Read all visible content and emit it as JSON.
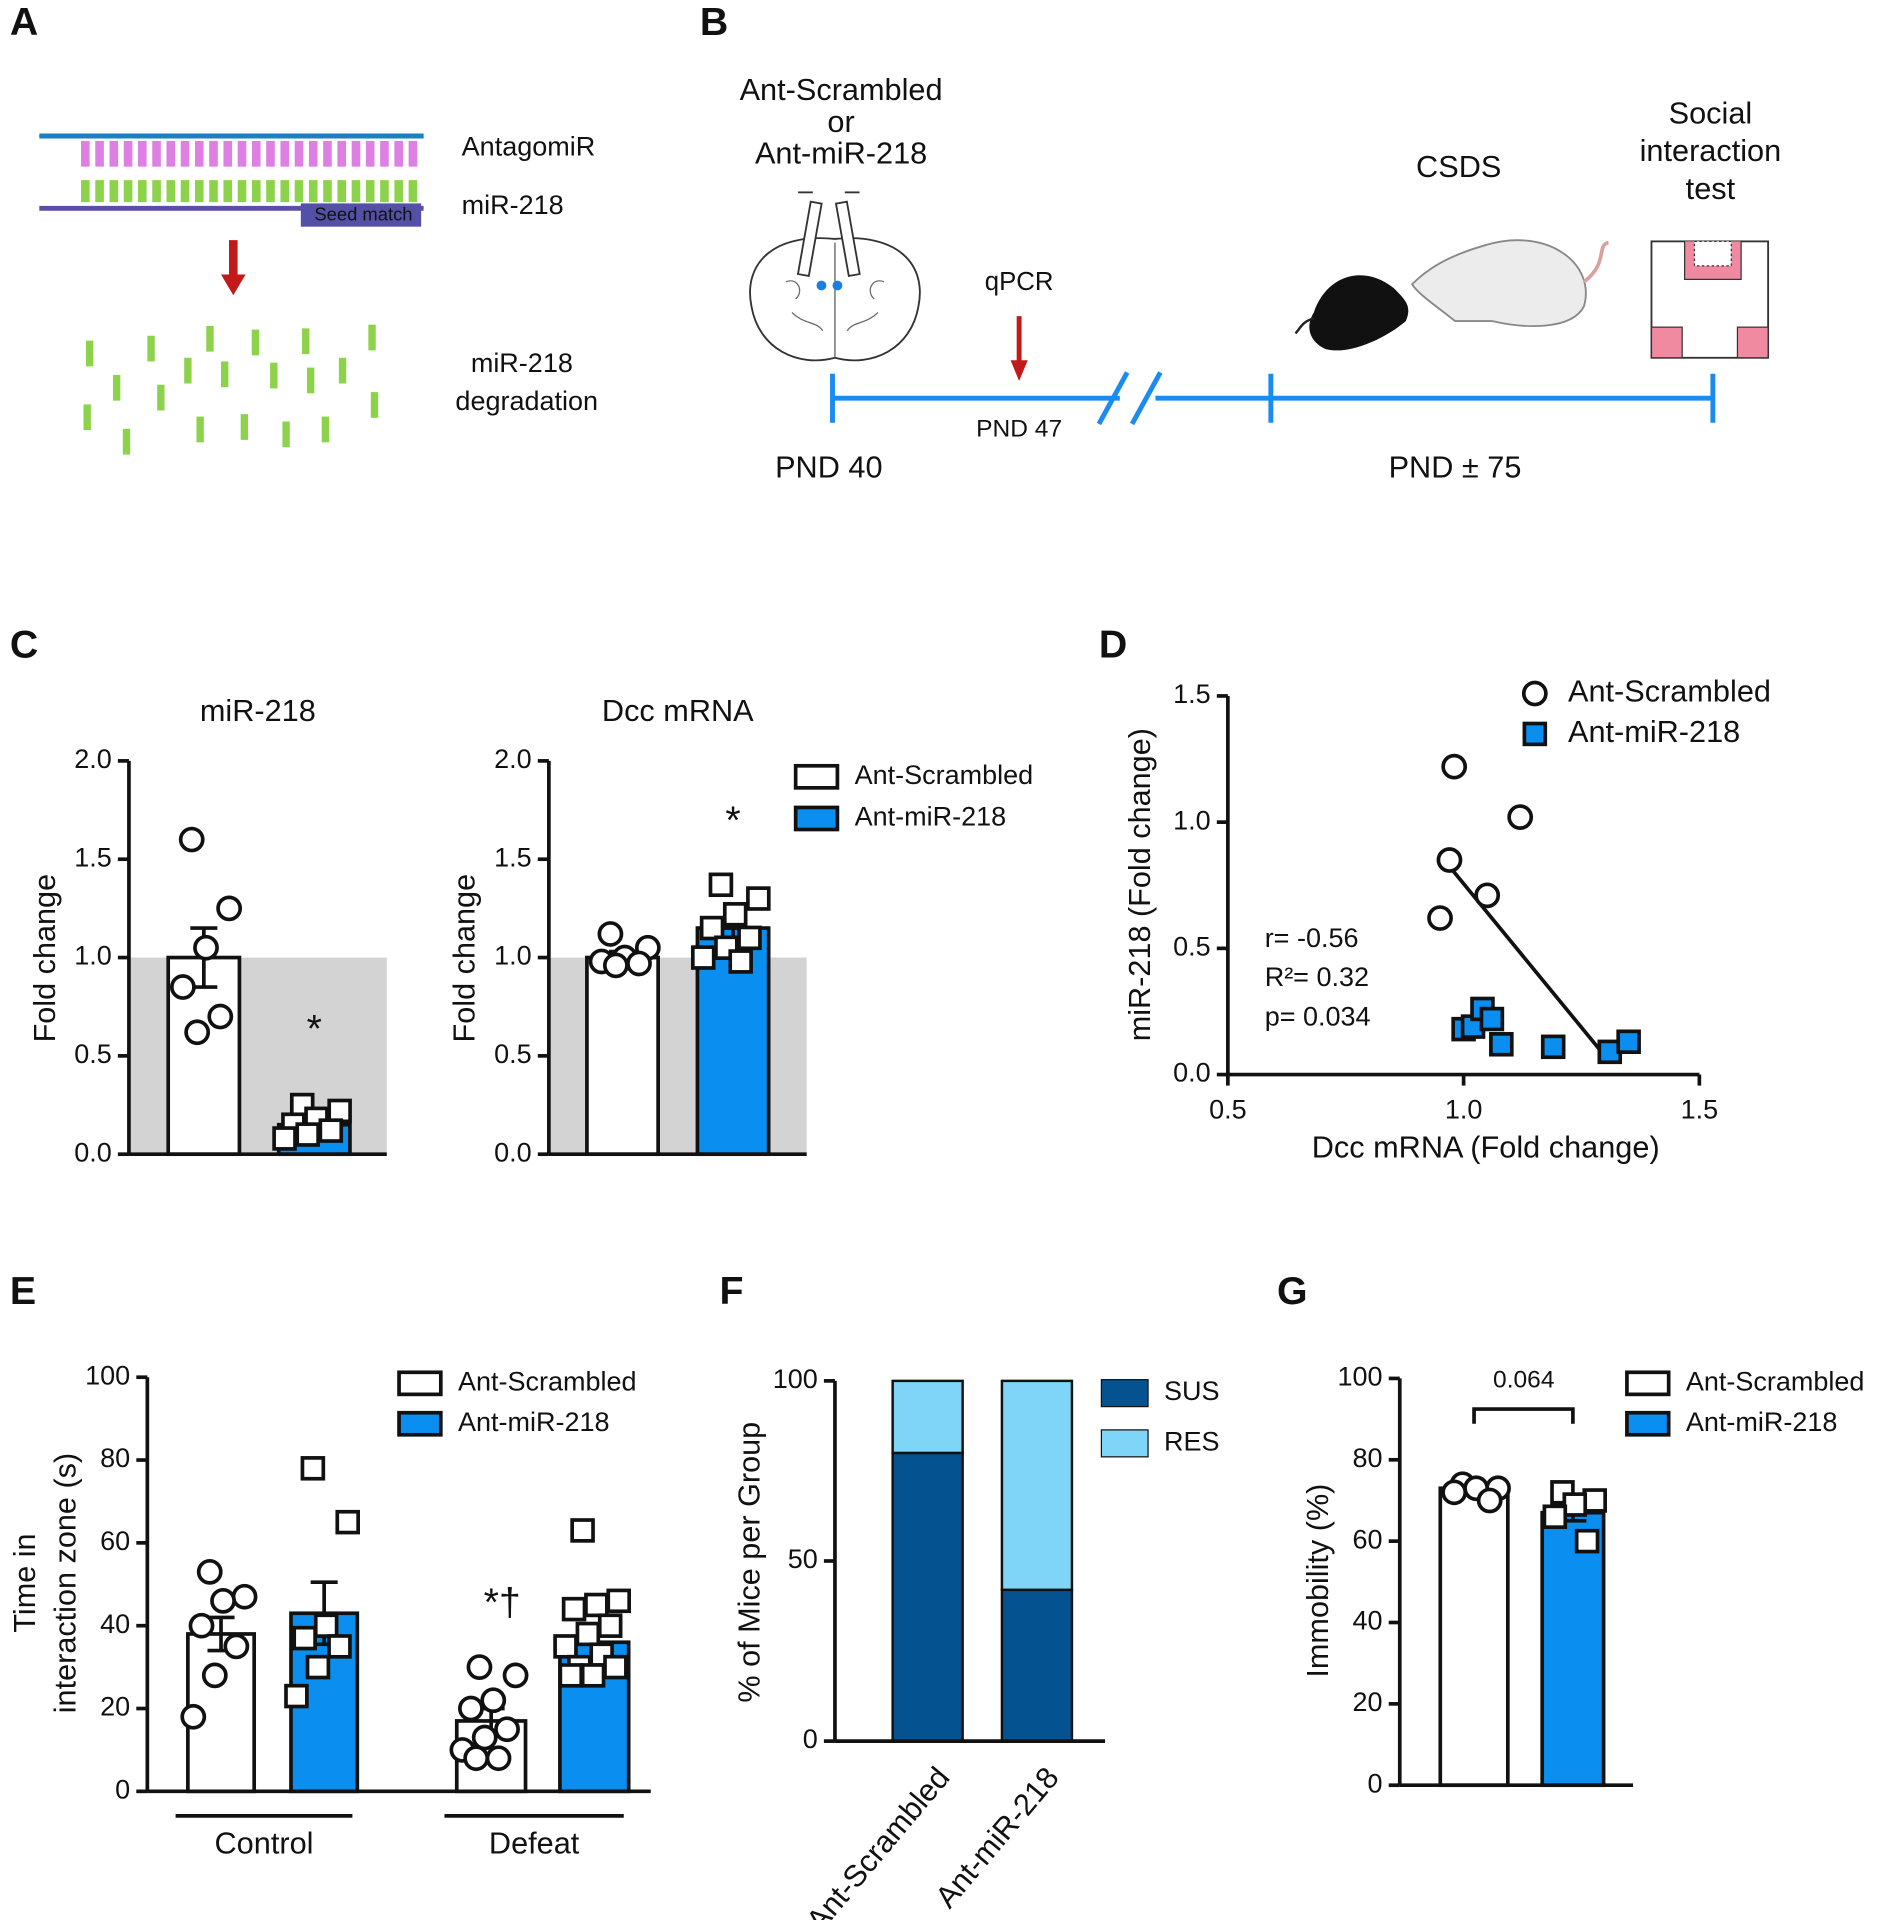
{
  "panels": [
    "A",
    "B",
    "C",
    "D",
    "E",
    "F",
    "G"
  ],
  "diagram_a": {
    "strand_top": "AntagomiR",
    "strand_bottom": "miR-218",
    "seed": "Seed match",
    "result": [
      "miR-218",
      "degradation"
    ]
  },
  "diagram_b": {
    "treatment": [
      "Ant-Scrambled",
      "or",
      "Ant-miR-218"
    ],
    "qpcr": "qPCR",
    "qpcr_day": "PND 47",
    "csds": "CSDS",
    "test": [
      "Social",
      "interaction",
      "test"
    ],
    "start": "PND 40",
    "end": "PND ± 75"
  },
  "chart_data": [
    {
      "type": "bar",
      "title": "miR-218",
      "ylabel": "Fold change",
      "ylim": [
        0,
        2
      ],
      "yticks": [
        {
          "value": 0,
          "label": "0.0"
        },
        {
          "value": 0.5,
          "label": "0.5"
        },
        {
          "value": 1,
          "label": "1.0"
        },
        {
          "value": 1.5,
          "label": "1.5"
        },
        {
          "value": 2,
          "label": "2.0"
        }
      ],
      "reference": 1,
      "values": [
        1.0,
        0.15
      ],
      "errors": [
        0.15,
        0.03
      ],
      "colors": [
        "#ffffff",
        "#0a8ff0"
      ],
      "markers": [
        "circle",
        "square"
      ],
      "points": [
        [
          1.6,
          1.25,
          1.05,
          0.85,
          0.7,
          0.62
        ],
        [
          0.25,
          0.22,
          0.18,
          0.15,
          0.12,
          0.1,
          0.08
        ]
      ],
      "annotation": "*"
    },
    {
      "type": "bar",
      "title": "Dcc mRNA",
      "ylabel": "Fold change",
      "ylim": [
        0,
        2
      ],
      "yticks": [
        {
          "value": 0,
          "label": "0.0"
        },
        {
          "value": 0.5,
          "label": "0.5"
        },
        {
          "value": 1,
          "label": "1.0"
        },
        {
          "value": 1.5,
          "label": "1.5"
        },
        {
          "value": 2,
          "label": "2.0"
        }
      ],
      "reference": 1,
      "values": [
        1.0,
        1.15
      ],
      "errors": [
        0.03,
        0.05
      ],
      "colors": [
        "#ffffff",
        "#0a8ff0"
      ],
      "markers": [
        "circle",
        "square"
      ],
      "points": [
        [
          1.12,
          1.05,
          1.0,
          0.98,
          0.97,
          0.96
        ],
        [
          1.37,
          1.3,
          1.22,
          1.15,
          1.1,
          1.05,
          1.0,
          0.98
        ]
      ],
      "annotation": "*",
      "legend": [
        "Ant-Scrambled",
        "Ant-miR-218"
      ]
    },
    {
      "type": "scatter",
      "xlabel": "Dcc mRNA (Fold change)",
      "ylabel": "miR-218 (Fold change)",
      "xlim": [
        0.5,
        1.5
      ],
      "ylim": [
        0,
        1.5
      ],
      "xticks": [
        {
          "value": 0.5,
          "label": "0.5"
        },
        {
          "value": 1,
          "label": "1.0"
        },
        {
          "value": 1.5,
          "label": "1.5"
        }
      ],
      "yticks": [
        {
          "value": 0,
          "label": "0.0"
        },
        {
          "value": 0.5,
          "label": "0.5"
        },
        {
          "value": 1,
          "label": "1.0"
        },
        {
          "value": 1.5,
          "label": "1.5"
        }
      ],
      "series": [
        {
          "name": "Ant-Scrambled",
          "color": "#ffffff",
          "marker": "circle",
          "x": [
            0.98,
            1.12,
            0.97,
            1.05,
            0.95
          ],
          "y": [
            1.22,
            1.02,
            0.85,
            0.71,
            0.62
          ]
        },
        {
          "name": "Ant-miR-218",
          "color": "#0a8ff0",
          "marker": "square",
          "x": [
            1.0,
            1.02,
            1.04,
            1.06,
            1.08,
            1.19,
            1.31,
            1.35
          ],
          "y": [
            0.18,
            0.19,
            0.26,
            0.22,
            0.12,
            0.11,
            0.09,
            0.13
          ]
        }
      ],
      "fit": {
        "x": [
          0.95,
          1.31
        ],
        "y": [
          0.87,
          0.05
        ]
      },
      "stats": [
        "r= -0.56",
        "R²= 0.32",
        "p= 0.034"
      ]
    },
    {
      "type": "bar",
      "ylabel": [
        "Time in",
        "interaction zone (s)"
      ],
      "ylim": [
        0,
        100
      ],
      "yticks": [
        0,
        20,
        40,
        60,
        80,
        100
      ],
      "values": [
        38,
        43,
        17,
        36
      ],
      "errors": [
        4,
        7.5,
        3,
        4
      ],
      "colors": [
        "#ffffff",
        "#0a8ff0"
      ],
      "markers": [
        "circle",
        "square"
      ],
      "points": [
        [
          53,
          47,
          46,
          40,
          35,
          28,
          18
        ],
        [
          78,
          65,
          40,
          37,
          35,
          30,
          23
        ],
        [
          30,
          28,
          22,
          20,
          15,
          13,
          10,
          8,
          8
        ],
        [
          63,
          46,
          45,
          44,
          40,
          38,
          35,
          33,
          30,
          30,
          28,
          28
        ]
      ],
      "groups": [
        "Control",
        "Defeat"
      ],
      "annotation": "*†",
      "legend": [
        "Ant-Scrambled",
        "Ant-miR-218"
      ]
    },
    {
      "type": "stacked_bar",
      "ylabel": "% of Mice per Group",
      "ylim": [
        0,
        100
      ],
      "yticks": [
        0,
        50,
        100
      ],
      "categories": [
        "Ant-Scrambled",
        "Ant-miR-218"
      ],
      "series": [
        {
          "name": "SUS",
          "color": "#045390",
          "values": [
            80,
            42
          ]
        },
        {
          "name": "RES",
          "color": "#7fd5f7",
          "values": [
            20,
            58
          ]
        }
      ]
    },
    {
      "type": "bar",
      "ylabel": "Immobility (%)",
      "ylim": [
        0,
        100
      ],
      "yticks": [
        0,
        20,
        40,
        60,
        80,
        100
      ],
      "values": [
        73,
        67
      ],
      "errors": [
        1,
        2
      ],
      "colors": [
        "#ffffff",
        "#0a8ff0"
      ],
      "markers": [
        "circle",
        "square"
      ],
      "points": [
        [
          74,
          73,
          73,
          72,
          70
        ],
        [
          72,
          70,
          69,
          66,
          60
        ]
      ],
      "annotation": "0.064",
      "legend": [
        "Ant-Scrambled",
        "Ant-miR-218"
      ]
    }
  ]
}
